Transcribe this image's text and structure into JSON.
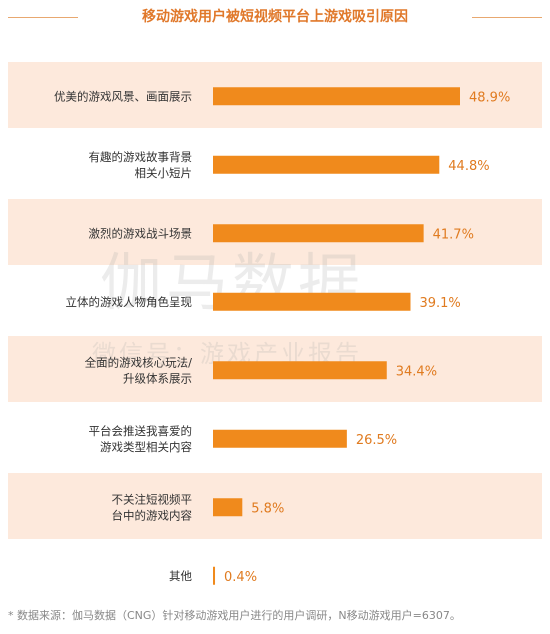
{
  "watermark": {
    "line1": "伽马数据",
    "line2": "微信号：游戏产业报告"
  },
  "source_note": "* 数据来源：伽马数据（CNG）针对移动游戏用户进行的用户调研，N移动游戏用户=6307。",
  "colors": {
    "bar": "#f08a1c",
    "band": "#fde9dc",
    "title": "#e0782a",
    "value": "#e07b20"
  },
  "chart_data": {
    "type": "bar",
    "orientation": "horizontal",
    "title": "移动游戏用户被短视频平台上游戏吸引原因",
    "xlabel": "",
    "ylabel": "",
    "xlim": [
      0,
      55
    ],
    "grid": false,
    "categories": [
      [
        "优美的游戏风景、画面展示"
      ],
      [
        "有趣的游戏故事背景",
        "相关小短片"
      ],
      [
        "激烈的游戏战斗场景"
      ],
      [
        "立体的游戏人物角色呈现"
      ],
      [
        "全面的游戏核心玩法/",
        "升级体系展示"
      ],
      [
        "平台会推送我喜爱的",
        "游戏类型相关内容"
      ],
      [
        "不关注短视频平",
        "台中的游戏内容"
      ],
      [
        "其他"
      ]
    ],
    "values": [
      48.9,
      44.8,
      41.7,
      39.1,
      34.4,
      26.5,
      5.8,
      0.4
    ],
    "value_labels": [
      "48.9%",
      "44.8%",
      "41.7%",
      "39.1%",
      "34.4%",
      "26.5%",
      "5.8%",
      "0.4%"
    ]
  }
}
